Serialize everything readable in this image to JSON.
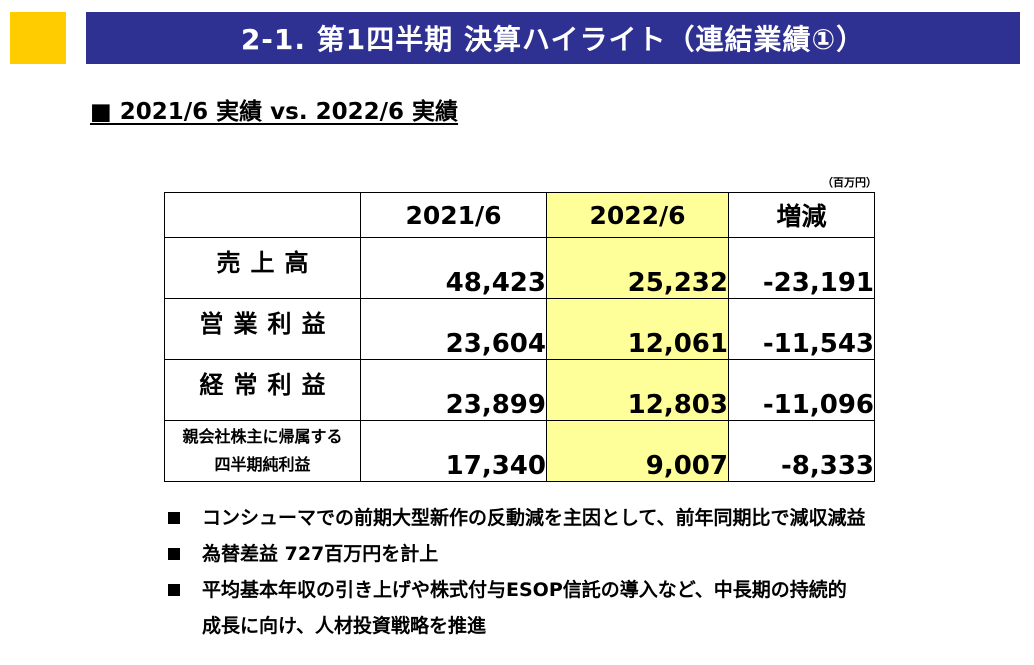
{
  "header": {
    "title": "2-1. 第1四半期 決算ハイライト（連結業績①）"
  },
  "subtitle": "■ 2021/6 実績 vs. 2022/6 実績",
  "table": {
    "unit": "（百万円）",
    "columns": [
      "2021/6",
      "2022/6",
      "増減"
    ],
    "rows": [
      {
        "label": "売上高",
        "values": [
          "48,423",
          "25,232",
          "-23,191"
        ]
      },
      {
        "label": "営業利益",
        "values": [
          "23,604",
          "12,061",
          "-11,543"
        ]
      },
      {
        "label": "経常利益",
        "values": [
          "23,899",
          "12,803",
          "-11,096"
        ]
      },
      {
        "label_line1": "親会社株主に帰属する",
        "label_line2": "四半期純利益",
        "values": [
          "17,340",
          "9,007",
          "-8,333"
        ]
      }
    ]
  },
  "bullets": [
    {
      "text": "コンシューマでの前期大型新作の反動減を主因として、前年同期比で減収減益"
    },
    {
      "text": "為替差益 727百万円を計上"
    },
    {
      "text": "平均基本年収の引き上げや株式付与ESOP信託の導入など、中長期の持続的",
      "text2": "成長に向け、人材投資戦略を推進"
    }
  ],
  "colors": {
    "title_bg": "#2e3192",
    "accent_square": "#ffcc00",
    "highlight_col": "#ffff99"
  }
}
